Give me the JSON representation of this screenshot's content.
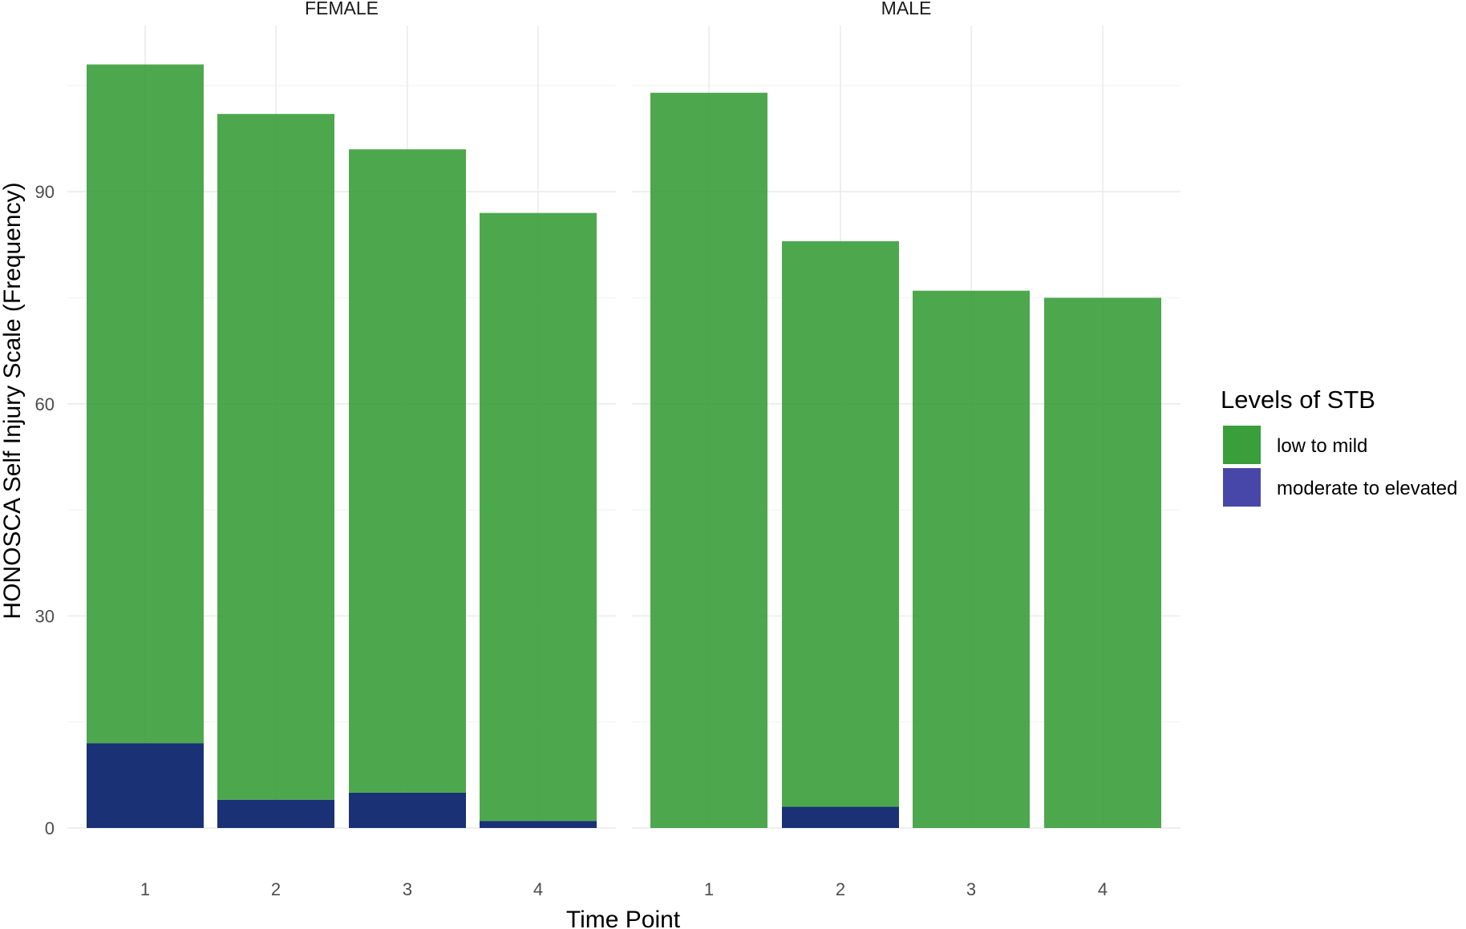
{
  "chart_data": {
    "type": "bar",
    "stacked": true,
    "facets": [
      "FEMALE",
      "MALE"
    ],
    "categories": [
      "1",
      "2",
      "3",
      "4"
    ],
    "xlabel": "Time Point",
    "ylabel": "HONOSCA Self Injury Scale (Frequency)",
    "ylim": [
      0,
      110
    ],
    "yticks": [
      0,
      30,
      60,
      90
    ],
    "grid": true,
    "legend": {
      "title": "Levels of STB",
      "position": "right",
      "items": [
        {
          "label": "low to mild",
          "color": "#3a9e3a"
        },
        {
          "label": "moderate to elevated",
          "color": "#4747aa"
        }
      ]
    },
    "series": [
      {
        "name": "low to mild",
        "color": "#3a9e3a",
        "values": {
          "FEMALE": [
            96,
            97,
            91,
            86
          ],
          "MALE": [
            104,
            80,
            76,
            75
          ]
        }
      },
      {
        "name": "moderate to elevated",
        "color": "#1a3175",
        "values": {
          "FEMALE": [
            12,
            4,
            5,
            1
          ],
          "MALE": [
            0,
            3,
            0,
            0
          ]
        }
      }
    ]
  }
}
